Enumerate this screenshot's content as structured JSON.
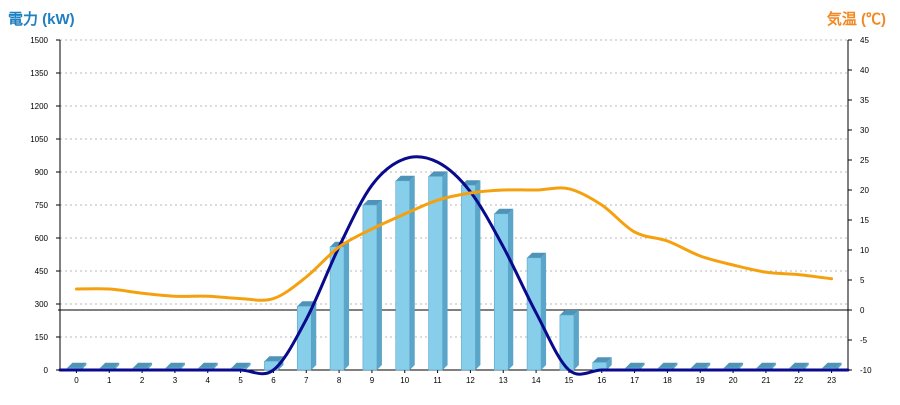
{
  "header": {
    "left_axis_title": "電力 (kW)",
    "right_axis_title": "気温 (℃)"
  },
  "colors": {
    "left_title": "#1f7fc1",
    "right_title": "#f08a24",
    "bar_front": "#87ceeb",
    "bar_side": "#5aa5c8",
    "bar_top": "#4f94b8",
    "power_line": "#0a0a8c",
    "temperature_line": "#f5a10f",
    "zero_line": "#000000",
    "grid": "#b9b9b9"
  },
  "chart_data": {
    "type": "bar",
    "categories": [
      "0",
      "1",
      "2",
      "3",
      "4",
      "5",
      "6",
      "7",
      "8",
      "9",
      "10",
      "11",
      "12",
      "13",
      "14",
      "15",
      "16",
      "17",
      "18",
      "19",
      "20",
      "21",
      "22",
      "23"
    ],
    "left_axis": {
      "label": "電力 (kW)",
      "range": [
        0,
        1500
      ],
      "ticks": [
        0,
        150,
        300,
        450,
        600,
        750,
        900,
        1050,
        1200,
        1350,
        1500
      ]
    },
    "right_axis": {
      "label": "気温 (℃)",
      "range": [
        -10,
        45
      ],
      "ticks": [
        -10,
        -5,
        0,
        5,
        10,
        15,
        20,
        25,
        30,
        35,
        40,
        45
      ]
    },
    "grid": true,
    "series": [
      {
        "type": "bar",
        "axis": "left",
        "values": [
          10,
          10,
          10,
          10,
          10,
          10,
          40,
          290,
          560,
          750,
          860,
          880,
          840,
          710,
          510,
          250,
          35,
          10,
          10,
          10,
          10,
          10,
          10,
          10
        ]
      },
      {
        "type": "line",
        "axis": "left",
        "values": [
          0,
          0,
          0,
          0,
          0,
          0,
          0,
          230,
          560,
          840,
          960,
          945,
          810,
          560,
          260,
          0,
          0,
          0,
          0,
          0,
          0,
          0,
          0,
          0
        ]
      },
      {
        "type": "line",
        "axis": "right",
        "values": [
          3.5,
          3.5,
          2.8,
          2.3,
          2.3,
          1.9,
          1.9,
          5.5,
          10.5,
          13.5,
          16,
          18.3,
          19.5,
          20,
          20,
          20.2,
          17.5,
          13,
          11.5,
          9,
          7.5,
          6.3,
          5.9,
          5.2
        ]
      }
    ]
  }
}
